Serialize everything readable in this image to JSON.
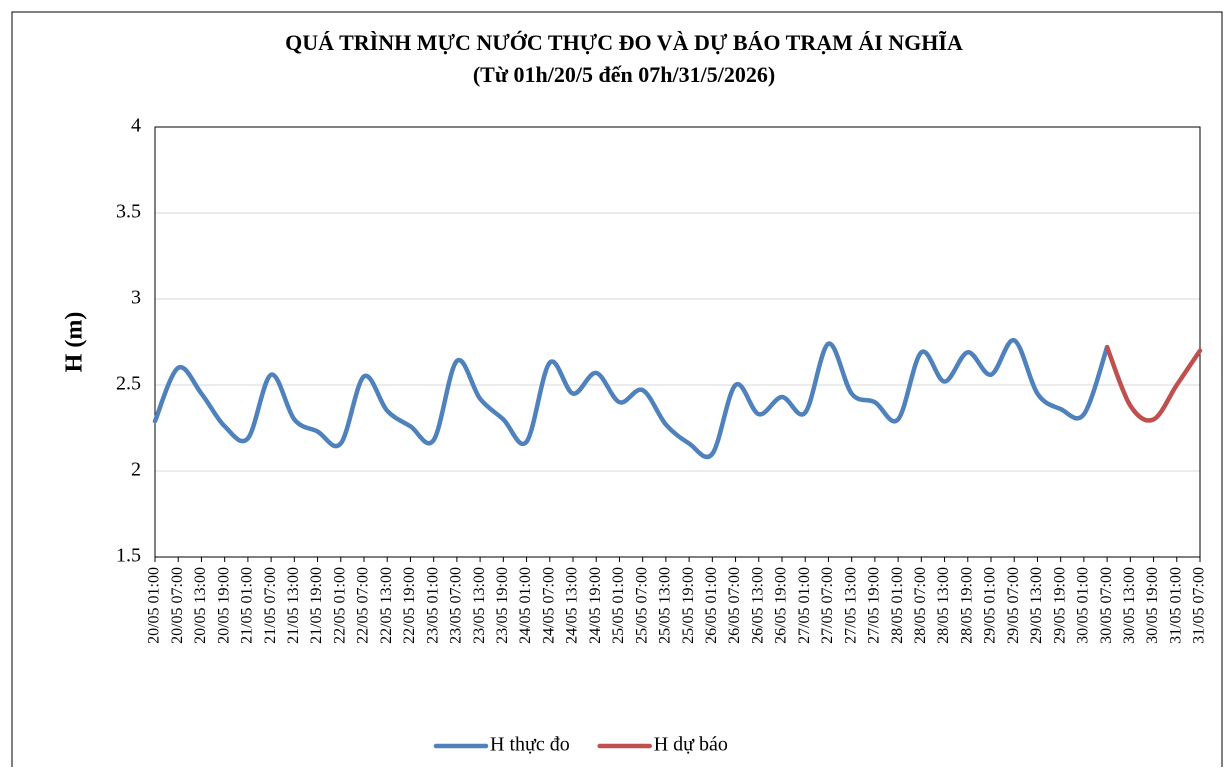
{
  "chart_data": {
    "type": "line",
    "title": "QUÁ TRÌNH MỰC NƯỚC THỰC ĐO VÀ DỰ BÁO TRẠM ÁI NGHĨA",
    "subtitle": "(Từ 01h/20/5 đến 07h/31/5/2026)",
    "y_label": "H (m)",
    "categories": [
      "20/05 01:00",
      "20/05 07:00",
      "20/05 13:00",
      "20/05 19:00",
      "21/05 01:00",
      "21/05 07:00",
      "21/05 13:00",
      "21/05 19:00",
      "22/05 01:00",
      "22/05 07:00",
      "22/05 13:00",
      "22/05 19:00",
      "23/05 01:00",
      "23/05 07:00",
      "23/05 13:00",
      "23/05 19:00",
      "24/05 01:00",
      "24/05 07:00",
      "24/05 13:00",
      "24/05 19:00",
      "25/05 01:00",
      "25/05 07:00",
      "25/05 13:00",
      "25/05 19:00",
      "26/05 01:00",
      "26/05 07:00",
      "26/05 13:00",
      "26/05 19:00",
      "27/05 01:00",
      "27/05 07:00",
      "27/05 13:00",
      "27/05 19:00",
      "28/05 01:00",
      "28/05 07:00",
      "28/05 13:00",
      "28/05 19:00",
      "29/05 01:00",
      "29/05 07:00",
      "29/05 13:00",
      "29/05 19:00",
      "30/05 01:00",
      "30/05 07:00",
      "30/05 13:00",
      "30/05 19:00",
      "31/05 01:00",
      "31/05 07:00"
    ],
    "series": [
      {
        "name": "H thực đo",
        "color": "#4f81bd",
        "values": [
          2.29,
          2.6,
          2.45,
          2.26,
          2.19,
          2.56,
          2.3,
          2.23,
          2.16,
          2.55,
          2.35,
          2.26,
          2.18,
          2.64,
          2.42,
          2.3,
          2.17,
          2.63,
          2.45,
          2.57,
          2.4,
          2.47,
          2.27,
          2.16,
          2.1,
          2.5,
          2.33,
          2.43,
          2.34,
          2.74,
          2.45,
          2.4,
          2.3,
          2.69,
          2.52,
          2.69,
          2.56,
          2.76,
          2.45,
          2.36,
          2.33,
          2.72,
          null,
          null,
          null,
          null
        ]
      },
      {
        "name": "H dự báo",
        "color": "#c0504d",
        "values": [
          null,
          null,
          null,
          null,
          null,
          null,
          null,
          null,
          null,
          null,
          null,
          null,
          null,
          null,
          null,
          null,
          null,
          null,
          null,
          null,
          null,
          null,
          null,
          null,
          null,
          null,
          null,
          null,
          null,
          null,
          null,
          null,
          null,
          null,
          null,
          null,
          null,
          null,
          null,
          null,
          null,
          2.72,
          2.38,
          2.3,
          2.5,
          2.7
        ]
      }
    ],
    "ylim": [
      1.5,
      4
    ],
    "yticks": [
      1.5,
      2,
      2.5,
      3,
      3.5,
      4
    ],
    "grid": true,
    "legend": "bottom"
  }
}
